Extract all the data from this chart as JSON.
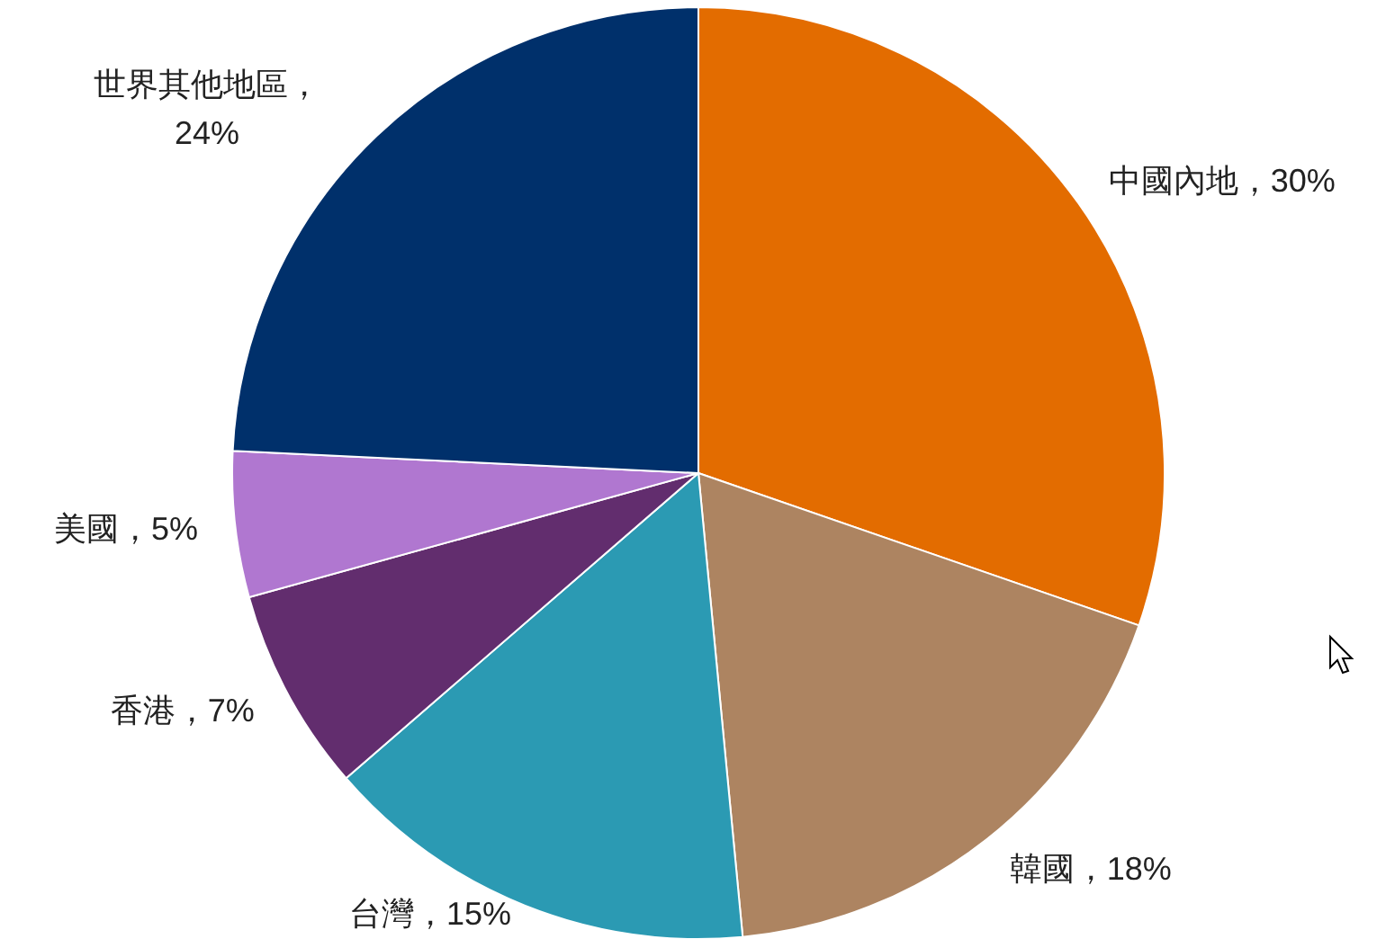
{
  "chart_data": {
    "type": "pie",
    "categories": [
      "中國內地",
      "韓國",
      "台灣",
      "香港",
      "美國",
      "世界其他地區"
    ],
    "values": [
      30,
      18,
      15,
      7,
      5,
      24
    ],
    "colors": [
      "#e36c00",
      "#ad8461",
      "#2b9ab3",
      "#622d6e",
      "#b077d0",
      "#00306b"
    ],
    "value_labels": [
      "，30%",
      "，18%",
      "，15%",
      "，7%",
      "，5%",
      "，24%"
    ]
  }
}
